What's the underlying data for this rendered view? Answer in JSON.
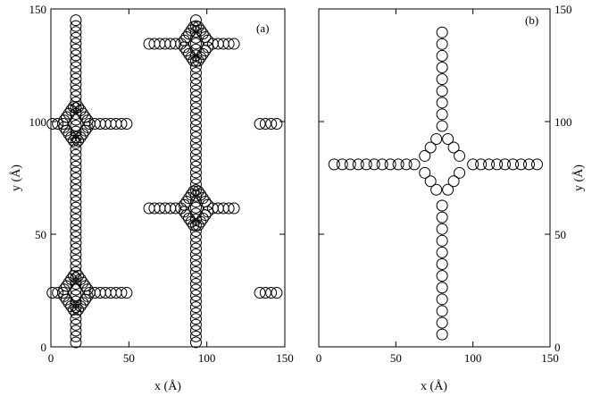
{
  "chart_data": [
    {
      "type": "scatter",
      "panel_label": "(a)",
      "xlabel": "x (Å)",
      "ylabel": "y (Å)",
      "xlim": [
        0,
        150
      ],
      "ylim": [
        0,
        150
      ],
      "xticks": [
        0,
        50,
        100,
        150
      ],
      "yticks": [
        0,
        50,
        100,
        150
      ],
      "x_tick_labels": [
        "0",
        "50",
        "100",
        "150"
      ],
      "y_tick_labels": [
        "0",
        "50",
        "100",
        "150"
      ],
      "marker": "open-circle",
      "grid": false,
      "points": {
        "vertical_lines": [
          {
            "x": 16,
            "y_from": 2,
            "y_to": 146,
            "step": 2.6
          },
          {
            "x": 93,
            "y_from": 2,
            "y_to": 146,
            "step": 2.6
          }
        ],
        "horizontal_lines": [
          {
            "y": 24,
            "x_from": 1,
            "x_to": 51,
            "step": 3.4,
            "skip_x": [
              10,
              22
            ]
          },
          {
            "y": 99,
            "x_from": 1,
            "x_to": 51,
            "step": 3.4,
            "skip_x": [
              10,
              22
            ]
          },
          {
            "y": 61.5,
            "x_from": 63,
            "x_to": 119,
            "step": 3.4,
            "skip_x": [
              85,
              101
            ]
          },
          {
            "y": 134.5,
            "x_from": 63,
            "x_to": 119,
            "step": 3.4,
            "skip_x": [
              85,
              101
            ]
          },
          {
            "y": 24,
            "x_from": 134,
            "x_to": 145,
            "step": 3.6,
            "skip_x": []
          },
          {
            "y": 99,
            "x_from": 134,
            "x_to": 145,
            "step": 3.6,
            "skip_x": []
          }
        ],
        "diamonds": [
          {
            "cx": 16,
            "cy": 24,
            "r": 9
          },
          {
            "cx": 16,
            "cy": 99,
            "r": 9
          },
          {
            "cx": 93,
            "cy": 61.5,
            "r": 9
          },
          {
            "cx": 93,
            "cy": 134.5,
            "r": 9
          }
        ]
      }
    },
    {
      "type": "scatter",
      "panel_label": "(b)",
      "xlabel": "x (Å)",
      "ylabel": "y (Å)",
      "xlim": [
        0,
        150
      ],
      "ylim": [
        0,
        150
      ],
      "xticks": [
        0,
        50,
        100,
        150
      ],
      "yticks": [
        0,
        50,
        100,
        150
      ],
      "x_tick_labels": [
        "0",
        "50",
        "100",
        "150"
      ],
      "y_tick_labels": [
        "0",
        "50",
        "100",
        "150"
      ],
      "marker": "open-circle",
      "grid": false,
      "points": {
        "vertical_lines": [
          {
            "x": 80,
            "y_from": 5.5,
            "y_to": 63,
            "step": 5.2
          },
          {
            "x": 80,
            "y_from": 98,
            "y_to": 142,
            "step": 5.2
          }
        ],
        "horizontal_lines": [
          {
            "y": 81,
            "x_from": 10,
            "x_to": 62,
            "step": 5.2,
            "skip_x": []
          },
          {
            "y": 81,
            "x_from": 100,
            "x_to": 144,
            "step": 5.2,
            "skip_x": []
          }
        ],
        "diamonds": [
          {
            "cx": 80,
            "cy": 81,
            "r": 15,
            "n": 16
          }
        ]
      }
    }
  ]
}
